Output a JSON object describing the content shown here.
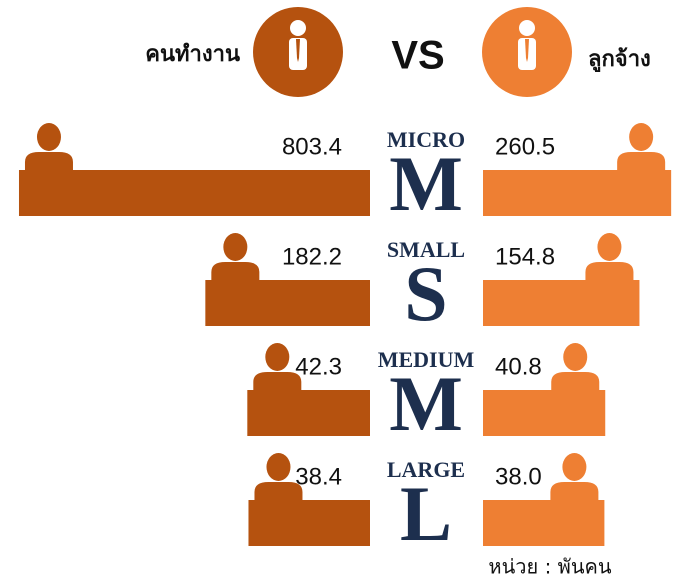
{
  "chart_data": {
    "type": "butterfly",
    "vs_label": "VS",
    "categories": [
      "MICRO",
      "SMALL",
      "MEDIUM",
      "LARGE"
    ],
    "letters": [
      "M",
      "S",
      "M",
      "L"
    ],
    "series": [
      {
        "name": "คนทำงาน",
        "color": "#b5520f",
        "values": [
          803.4,
          182.2,
          42.3,
          38.4
        ],
        "value_labels": [
          "803.4",
          "182.2",
          "42.3",
          "38.4"
        ]
      },
      {
        "name": "ลูกจ้าง",
        "color": "#ee7f33",
        "values": [
          260.5,
          154.8,
          40.8,
          38.0
        ],
        "value_labels": [
          "260.5",
          "154.8",
          "40.8",
          "38.0"
        ]
      }
    ],
    "unit_note": "หน่วย : พันคน"
  }
}
